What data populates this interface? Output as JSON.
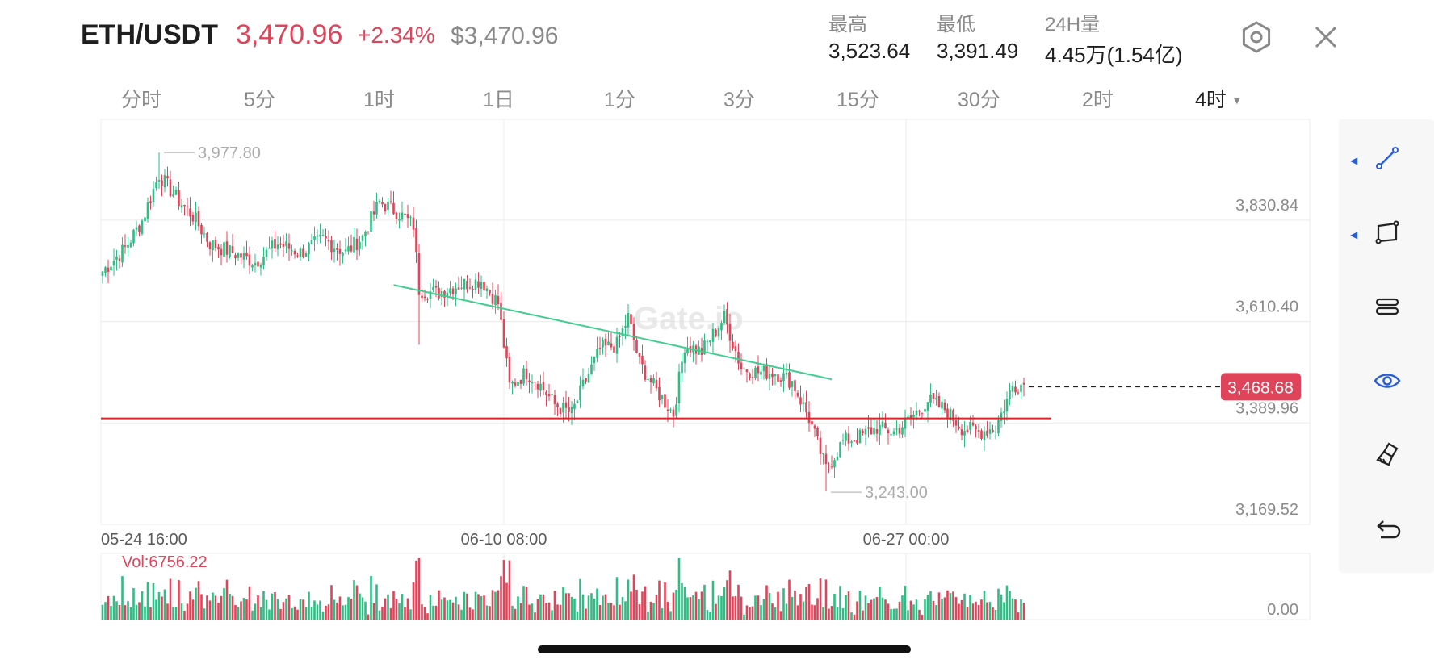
{
  "header": {
    "pair": "ETH/USDT",
    "price": "3,470.96",
    "change": "+2.34%",
    "usd_price": "$3,470.96",
    "stats": [
      {
        "label": "最高",
        "value": "3,523.64"
      },
      {
        "label": "最低",
        "value": "3,391.49"
      },
      {
        "label": "24H量",
        "value": "4.45万(1.54亿)"
      }
    ]
  },
  "intervals": [
    {
      "label": "分时",
      "active": false
    },
    {
      "label": "5分",
      "active": false
    },
    {
      "label": "1时",
      "active": false
    },
    {
      "label": "1日",
      "active": false
    },
    {
      "label": "1分",
      "active": false
    },
    {
      "label": "3分",
      "active": false
    },
    {
      "label": "15分",
      "active": false
    },
    {
      "label": "30分",
      "active": false
    },
    {
      "label": "2时",
      "active": false
    },
    {
      "label": "4时",
      "active": true
    }
  ],
  "toolbar": {
    "tools": [
      "trendline-icon",
      "rectangle-icon",
      "fib-channel-icon",
      "eye-icon",
      "eraser-icon",
      "undo-icon"
    ]
  },
  "colors": {
    "up": "#2ebd85",
    "down": "#e0445a",
    "trendline": "#3fce8f",
    "support": "#d9262c",
    "accent": "#2b5ed6"
  },
  "chart_data": {
    "type": "candlestick",
    "y_axis_ticks": [
      "3,830.84",
      "3,610.40",
      "3,389.96",
      "3,169.52"
    ],
    "x_axis_ticks": [
      "05-24 16:00",
      "06-10 08:00",
      "06-27 00:00"
    ],
    "ylim": [
      3169.52,
      4050
    ],
    "max_label": "3,977.80",
    "min_label": "3,243.00",
    "last_price_label": "3,468.68",
    "last_price": 3468.68,
    "support_level": 3400,
    "trendline": {
      "start_candle": 103,
      "start_price": 3690,
      "end_candle": 258,
      "end_price": 3485
    },
    "volume_label": "Vol:6756.22",
    "volume_axis_label": "0.00",
    "watermark": "Gate.io",
    "candle_count": 240,
    "key_points": [
      [
        0,
        3720
      ],
      [
        8,
        3770
      ],
      [
        14,
        3830
      ],
      [
        20,
        3930
      ],
      [
        26,
        3880
      ],
      [
        32,
        3840
      ],
      [
        38,
        3780
      ],
      [
        46,
        3760
      ],
      [
        54,
        3740
      ],
      [
        62,
        3780
      ],
      [
        70,
        3760
      ],
      [
        78,
        3790
      ],
      [
        86,
        3760
      ],
      [
        92,
        3795
      ],
      [
        98,
        3870
      ],
      [
        104,
        3850
      ],
      [
        110,
        3820
      ],
      [
        112,
        3680
      ],
      [
        118,
        3672
      ],
      [
        126,
        3690
      ],
      [
        134,
        3700
      ],
      [
        140,
        3650
      ],
      [
        144,
        3470
      ],
      [
        150,
        3500
      ],
      [
        154,
        3480
      ],
      [
        160,
        3430
      ],
      [
        166,
        3410
      ],
      [
        170,
        3470
      ],
      [
        176,
        3550
      ],
      [
        182,
        3560
      ],
      [
        186,
        3620
      ],
      [
        190,
        3520
      ],
      [
        196,
        3460
      ],
      [
        202,
        3410
      ],
      [
        206,
        3560
      ],
      [
        212,
        3545
      ],
      [
        220,
        3620
      ],
      [
        226,
        3510
      ],
      [
        232,
        3500
      ],
      [
        238,
        3500
      ],
      [
        244,
        3480
      ],
      [
        250,
        3400
      ],
      [
        256,
        3290
      ],
      [
        262,
        3350
      ],
      [
        268,
        3360
      ],
      [
        274,
        3380
      ],
      [
        280,
        3370
      ],
      [
        286,
        3400
      ],
      [
        292,
        3440
      ],
      [
        298,
        3420
      ],
      [
        304,
        3380
      ],
      [
        310,
        3370
      ],
      [
        316,
        3380
      ],
      [
        322,
        3470
      ],
      [
        326,
        3475
      ]
    ]
  }
}
